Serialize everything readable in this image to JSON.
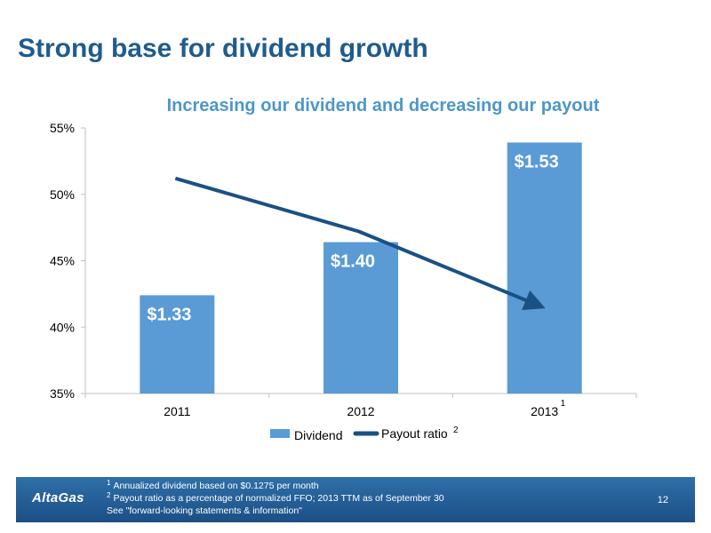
{
  "slide": {
    "title": "Strong base for dividend growth",
    "page_number": "12"
  },
  "footer": {
    "logo": "AltaGas",
    "footnotes": [
      {
        "marker": "1",
        "text": "Annualized dividend based on $0.1275 per month"
      },
      {
        "marker": "2",
        "text": "Payout ratio as a percentage of normalized FFO; 2013 TTM as of September 30"
      },
      {
        "marker": "",
        "text": "See \"forward-looking statements & information\""
      }
    ]
  },
  "colors": {
    "title": "#1f5c8e",
    "chart_title": "#4d97cb",
    "bar": "#5a9bd5",
    "line": "#1a5184",
    "axis": "#bfbfbf"
  },
  "chart_data": {
    "type": "bar",
    "title": "Increasing our dividend and decreasing our payout",
    "categories": [
      "2011",
      "2012",
      "2013"
    ],
    "category_superscripts": [
      "",
      "",
      "1"
    ],
    "series": [
      {
        "name": "Dividend",
        "type": "bar",
        "values": [
          42.4,
          46.4,
          53.9
        ],
        "data_labels": [
          "$1.33",
          "$1.40",
          "$1.53"
        ]
      },
      {
        "name": "Payout ratio",
        "name_superscript": "2",
        "type": "line",
        "values": [
          51.2,
          47.2,
          41.5
        ],
        "arrow_end": true
      }
    ],
    "yticks": [
      "55%",
      "50%",
      "45%",
      "40%",
      "35%"
    ],
    "ylim": [
      35,
      55
    ],
    "grid": false,
    "legend_position": "bottom"
  }
}
